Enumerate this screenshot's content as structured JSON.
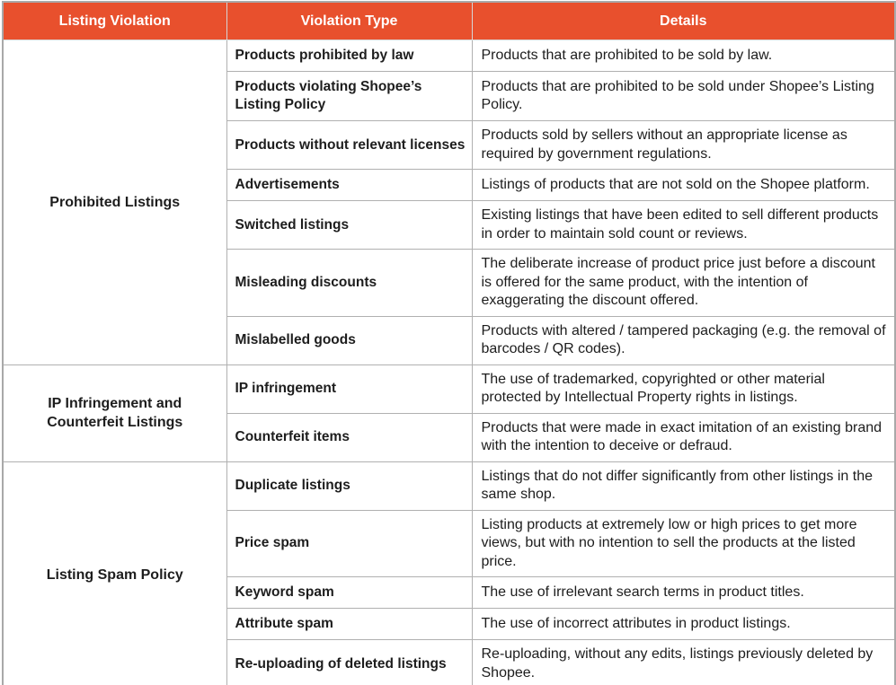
{
  "colors": {
    "header_bg": "#e8502d",
    "header_text": "#ffffff",
    "border": "#b0b0b0",
    "body_text": "#1d1d1d"
  },
  "table": {
    "headers": [
      "Listing Violation",
      "Violation Type",
      "Details"
    ],
    "groups": [
      {
        "label": "Prohibited Listings",
        "rows": [
          {
            "type": "Products prohibited by law",
            "details": "Products that are prohibited to be sold by law."
          },
          {
            "type": "Products violating Shopee’s Listing Policy",
            "details": "Products that are prohibited to be sold under Shopee’s Listing Policy."
          },
          {
            "type": "Products without relevant licenses",
            "details": "Products sold by sellers without an appropriate license as required by government regulations."
          },
          {
            "type": "Advertisements",
            "details": "Listings of products that are not sold on the Shopee platform."
          },
          {
            "type": "Switched listings",
            "details": "Existing listings that have been edited to sell different products in order to maintain sold count or reviews."
          },
          {
            "type": "Misleading discounts",
            "details": "The deliberate increase of product price just before a discount is offered for the same product, with the intention of exaggerating the discount offered."
          },
          {
            "type": "Mislabelled goods",
            "details": "Products with altered / tampered packaging (e.g. the removal of barcodes / QR codes)."
          }
        ]
      },
      {
        "label": "IP Infringement and Counterfeit Listings",
        "rows": [
          {
            "type": "IP infringement",
            "details": "The use of trademarked, copyrighted or other material protected by Intellectual Property rights in listings."
          },
          {
            "type": "Counterfeit items",
            "details": "Products that were made in exact imitation of an existing brand with the intention to deceive or defraud."
          }
        ]
      },
      {
        "label": "Listing Spam Policy",
        "rows": [
          {
            "type": "Duplicate listings",
            "details": "Listings that do not differ significantly from other listings in the same shop."
          },
          {
            "type": "Price spam",
            "details": "Listing products at extremely low or high prices to get more views, but with no intention to sell the products at the listed price."
          },
          {
            "type": "Keyword spam",
            "details": "The use of irrelevant search terms in product titles."
          },
          {
            "type": "Attribute spam",
            "details": "The use of incorrect attributes in product listings."
          },
          {
            "type": "Re-uploading of deleted listings",
            "details": "Re-uploading, without any edits, listings previously deleted by Shopee."
          }
        ]
      }
    ]
  }
}
